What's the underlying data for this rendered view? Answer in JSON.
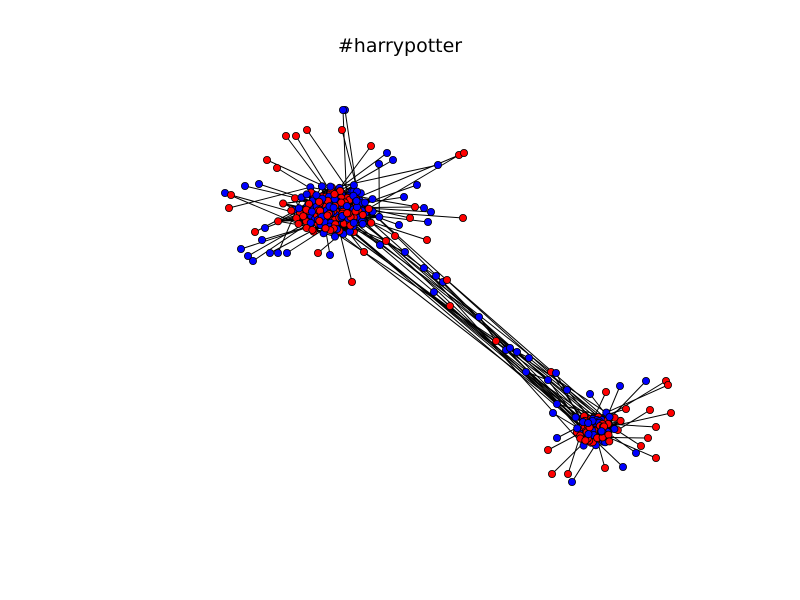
{
  "chart_data": {
    "type": "network",
    "title": "#harrypotter",
    "node_colors": [
      "#ff0000",
      "#0000ff"
    ],
    "edge_color": "#000000",
    "node_outline": "#000000",
    "axes_visible": false
  }
}
